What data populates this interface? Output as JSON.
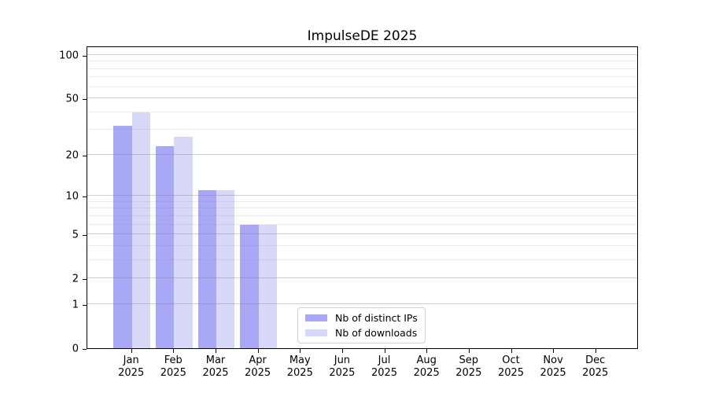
{
  "title": "ImpulseDE 2025",
  "colors": {
    "bar_distinct_ips": "#a8a8f7",
    "bar_downloads": "#d8d8f8",
    "grid_major": "rgba(130,130,130,0.38)",
    "grid_minor": "rgba(130,130,130,0.15)",
    "spine": "#000000",
    "background": "#ffffff",
    "text": "#000000"
  },
  "chart_data": {
    "type": "bar",
    "title": "ImpulseDE 2025",
    "categories": [
      "Jan 2025",
      "Feb 2025",
      "Mar 2025",
      "Apr 2025",
      "May 2025",
      "Jun 2025",
      "Jul 2025",
      "Aug 2025",
      "Sep 2025",
      "Oct 2025",
      "Nov 2025",
      "Dec 2025"
    ],
    "series": [
      {
        "name": "Nb of distinct IPs",
        "color": "#a8a8f7",
        "values": [
          32,
          23,
          11,
          6,
          0,
          0,
          0,
          0,
          0,
          0,
          0,
          0
        ]
      },
      {
        "name": "Nb of downloads",
        "color": "#d8d8f8",
        "values": [
          40,
          27,
          11,
          6,
          0,
          0,
          0,
          0,
          0,
          0,
          0,
          0
        ]
      }
    ],
    "xlabel": "",
    "ylabel": "",
    "yscale": "log1p",
    "ylim": [
      0,
      116
    ],
    "y_major_ticks": [
      0,
      1,
      2,
      5,
      10,
      20,
      50,
      100
    ],
    "y_minor_gridlines": [
      3,
      4,
      6,
      7,
      8,
      9,
      30,
      40,
      60,
      70,
      80,
      90
    ],
    "grid": "horizontal",
    "legend_position": "lower-center"
  }
}
